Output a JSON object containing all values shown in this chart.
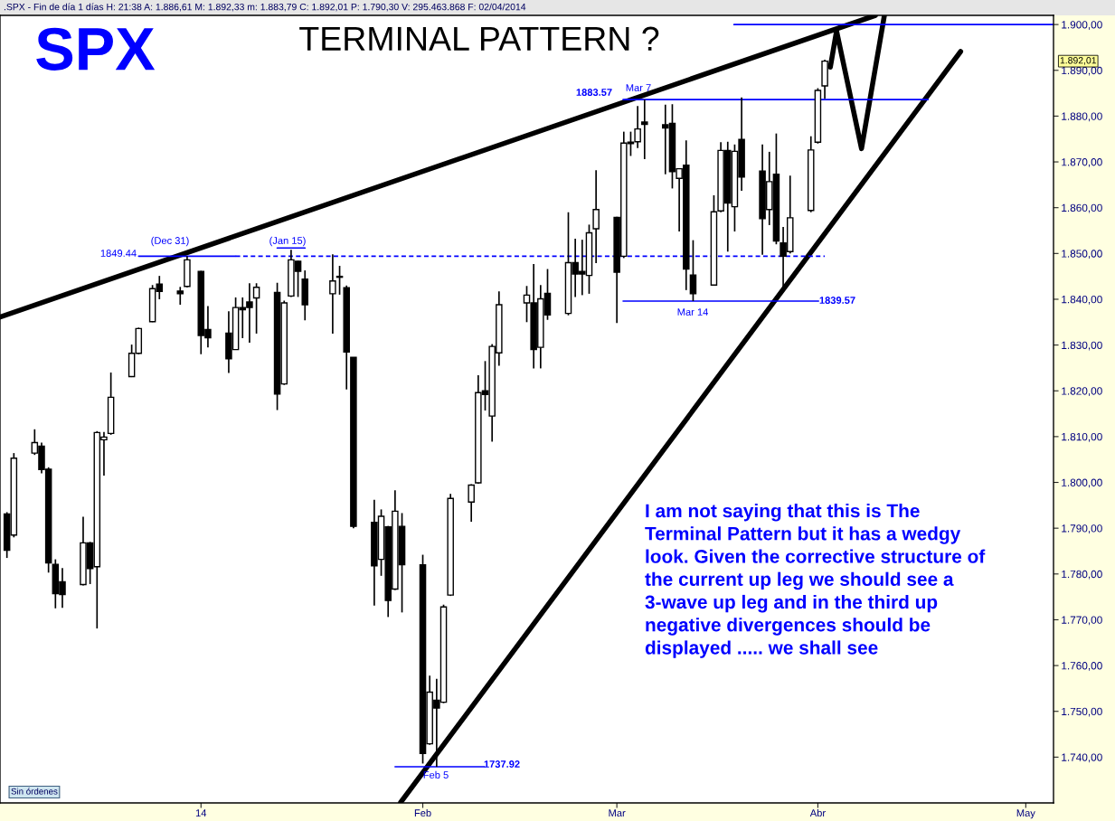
{
  "chart_data": {
    "type": "candlestick",
    "title": "SPX",
    "subtitle": "TERMINAL PATTERN ?",
    "x": [
      "2013-12-05",
      "2013-12-06",
      "2013-12-09",
      "2013-12-10",
      "2013-12-11",
      "2013-12-12",
      "2013-12-13",
      "2013-12-16",
      "2013-12-17",
      "2013-12-18",
      "2013-12-19",
      "2013-12-20",
      "2013-12-23",
      "2013-12-24",
      "2013-12-26",
      "2013-12-27",
      "2013-12-30",
      "2013-12-31",
      "2014-01-02",
      "2014-01-03",
      "2014-01-06",
      "2014-01-07",
      "2014-01-08",
      "2014-01-09",
      "2014-01-10",
      "2014-01-13",
      "2014-01-14",
      "2014-01-15",
      "2014-01-16",
      "2014-01-17",
      "2014-01-21",
      "2014-01-22",
      "2014-01-23",
      "2014-01-24",
      "2014-01-27",
      "2014-01-28",
      "2014-01-29",
      "2014-01-30",
      "2014-01-31",
      "2014-02-03",
      "2014-02-04",
      "2014-02-05",
      "2014-02-06",
      "2014-02-07",
      "2014-02-10",
      "2014-02-11",
      "2014-02-12",
      "2014-02-13",
      "2014-02-14",
      "2014-02-18",
      "2014-02-19",
      "2014-02-20",
      "2014-02-21",
      "2014-02-24",
      "2014-02-25",
      "2014-02-26",
      "2014-02-27",
      "2014-02-28",
      "2014-03-03",
      "2014-03-04",
      "2014-03-05",
      "2014-03-06",
      "2014-03-07",
      "2014-03-10",
      "2014-03-11",
      "2014-03-12",
      "2014-03-13",
      "2014-03-14",
      "2014-03-17",
      "2014-03-18",
      "2014-03-19",
      "2014-03-20",
      "2014-03-21",
      "2014-03-24",
      "2014-03-25",
      "2014-03-26",
      "2014-03-27",
      "2014-03-28",
      "2014-03-31",
      "2014-04-01",
      "2014-04-02"
    ],
    "ohlc": [
      [
        1793.1,
        1793.5,
        1783.5,
        1785.2
      ],
      [
        1788.5,
        1806.4,
        1788.0,
        1805.3
      ],
      [
        1806.4,
        1811.6,
        1806.0,
        1808.7
      ],
      [
        1807.9,
        1808.7,
        1802.0,
        1802.8
      ],
      [
        1802.9,
        1803.3,
        1780.3,
        1782.4
      ],
      [
        1782.1,
        1783.2,
        1772.5,
        1775.7
      ],
      [
        1778.3,
        1781.3,
        1772.6,
        1775.5
      ],
      [
        1777.7,
        1792.5,
        1777.5,
        1786.8
      ],
      [
        1786.8,
        1787.0,
        1777.8,
        1781.2
      ],
      [
        1781.6,
        1811.2,
        1768.1,
        1810.9
      ],
      [
        1809.3,
        1811.0,
        1801.5,
        1809.9
      ],
      [
        1810.7,
        1824.0,
        1810.4,
        1818.6
      ],
      [
        1823.1,
        1830.1,
        1823.0,
        1828.2
      ],
      [
        1828.2,
        1833.8,
        1828.0,
        1833.6
      ],
      [
        1835.1,
        1843.1,
        1835.0,
        1842.3
      ],
      [
        1843.3,
        1845.1,
        1840.0,
        1841.7
      ],
      [
        1841.8,
        1842.7,
        1838.8,
        1841.2
      ],
      [
        1842.8,
        1849.4,
        1842.6,
        1848.6
      ],
      [
        1846.1,
        1846.2,
        1828.0,
        1832.1
      ],
      [
        1833.4,
        1838.5,
        1829.5,
        1831.6
      ],
      [
        1832.6,
        1837.4,
        1823.9,
        1827.0
      ],
      [
        1829.0,
        1840.4,
        1829.0,
        1838.2
      ],
      [
        1838.2,
        1840.4,
        1831.5,
        1837.7
      ],
      [
        1839.4,
        1843.5,
        1830.5,
        1838.2
      ],
      [
        1840.3,
        1843.5,
        1832.5,
        1842.6
      ],
      [
        1841.5,
        1843.6,
        1815.8,
        1819.3
      ],
      [
        1821.5,
        1839.7,
        1821.3,
        1839.2
      ],
      [
        1840.7,
        1850.8,
        1840.5,
        1848.6
      ],
      [
        1848.3,
        1848.4,
        1840.5,
        1846.1
      ],
      [
        1844.4,
        1846.3,
        1835.4,
        1838.8
      ],
      [
        1841.2,
        1849.8,
        1832.5,
        1844.0
      ],
      [
        1845.0,
        1847.3,
        1841.0,
        1844.8
      ],
      [
        1842.5,
        1843.0,
        1820.3,
        1828.5
      ],
      [
        1827.3,
        1827.3,
        1790.0,
        1790.4
      ],
      [
        1791.3,
        1796.2,
        1773.1,
        1781.8
      ],
      [
        1783.2,
        1794.1,
        1779.6,
        1792.6
      ],
      [
        1790.3,
        1790.5,
        1770.6,
        1774.2
      ],
      [
        1776.7,
        1798.3,
        1776.5,
        1793.7
      ],
      [
        1790.4,
        1793.3,
        1771.6,
        1782.0
      ],
      [
        1782.0,
        1784.2,
        1738.6,
        1740.8
      ],
      [
        1742.9,
        1757.8,
        1742.7,
        1754.2
      ],
      [
        1752.4,
        1757.1,
        1737.9,
        1750.7
      ],
      [
        1752.0,
        1773.3,
        1751.8,
        1772.8
      ],
      [
        1775.4,
        1797.5,
        1775.2,
        1796.5
      ],
      [
        1795.7,
        1799.6,
        1791.4,
        1799.4
      ],
      [
        1799.9,
        1823.4,
        1799.7,
        1819.6
      ],
      [
        1820.0,
        1826.5,
        1815.7,
        1819.2
      ],
      [
        1814.5,
        1830.2,
        1808.9,
        1829.7
      ],
      [
        1828.3,
        1841.7,
        1825.5,
        1838.8
      ],
      [
        1839.2,
        1842.9,
        1835.0,
        1840.9
      ],
      [
        1839.2,
        1847.7,
        1824.9,
        1829.0
      ],
      [
        1829.5,
        1843.1,
        1824.9,
        1840.1
      ],
      [
        1841.3,
        1846.6,
        1835.5,
        1836.6
      ],
      [
        1836.9,
        1859.0,
        1836.5,
        1848.0
      ],
      [
        1848.0,
        1853.2,
        1840.5,
        1845.5
      ],
      [
        1846.1,
        1853.0,
        1840.9,
        1845.5
      ],
      [
        1845.2,
        1856.3,
        1841.2,
        1854.5
      ],
      [
        1855.4,
        1868.2,
        1847.9,
        1859.6
      ],
      [
        1857.9,
        1858.0,
        1834.8,
        1845.9
      ],
      [
        1849.4,
        1876.6,
        1849.0,
        1874.1
      ],
      [
        1874.3,
        1876.6,
        1871.3,
        1874.0
      ],
      [
        1874.4,
        1882.2,
        1873.0,
        1877.2
      ],
      [
        1878.7,
        1883.6,
        1870.6,
        1878.2
      ],
      [
        1878.1,
        1882.5,
        1867.3,
        1877.4
      ],
      [
        1878.4,
        1882.6,
        1864.2,
        1867.9
      ],
      [
        1866.4,
        1868.6,
        1854.8,
        1868.5
      ],
      [
        1869.3,
        1874.7,
        1842.0,
        1846.6
      ],
      [
        1845.3,
        1852.9,
        1839.6,
        1841.2
      ],
      [
        1843.1,
        1862.7,
        1843.0,
        1859.1
      ],
      [
        1859.3,
        1874.3,
        1859.0,
        1872.5
      ],
      [
        1872.5,
        1874.4,
        1850.4,
        1861.0
      ],
      [
        1860.2,
        1873.8,
        1854.8,
        1872.3
      ],
      [
        1874.9,
        1884.1,
        1863.7,
        1866.7
      ],
      [
        1868.0,
        1873.8,
        1849.7,
        1857.6
      ],
      [
        1859.6,
        1872.2,
        1856.2,
        1865.7
      ],
      [
        1867.3,
        1876.2,
        1852.0,
        1852.7
      ],
      [
        1852.3,
        1855.8,
        1842.6,
        1849.4
      ],
      [
        1850.4,
        1867.0,
        1850.0,
        1857.8
      ],
      [
        1859.4,
        1875.6,
        1859.0,
        1872.6
      ],
      [
        1874.3,
        1886.1,
        1874.0,
        1885.6
      ],
      [
        1886.6,
        1892.3,
        1883.8,
        1892.0
      ]
    ],
    "series": [
      {
        "type": "line",
        "color": "#000000",
        "x": [
          "2013-12-04",
          "2014-04-09T07:12"
        ],
        "values": [
          1836.1,
          1902
        ]
      },
      {
        "type": "line",
        "color": "#000000",
        "x": [
          "2014-01-30T19:12",
          "2014-04-21T14:24"
        ],
        "values": [
          1730.1,
          1894.1
        ]
      },
      {
        "type": "line",
        "color": "#000000",
        "x": [
          "2014-04-02T19:12",
          "2014-04-03T16:48",
          "2014-04-07T07:12",
          "2014-04-10T14:24"
        ],
        "values": [
          1890.7,
          1898.6,
          1872.9,
          1902
        ]
      },
      {
        "type": "line",
        "color": "#0000ff",
        "x": [
          "2013-12-24",
          "2014-01-07"
        ],
        "values": [
          1849.4,
          1849.4
        ]
      },
      {
        "type": "line",
        "color": "#0000ff",
        "line_style": "dashed",
        "x": [
          "2014-01-07",
          "2014-04-02"
        ],
        "values": [
          1849.4,
          1849.4
        ]
      },
      {
        "type": "line",
        "color": "#0000ff",
        "x": [
          "2014-01-13",
          "2014-01-17"
        ],
        "values": [
          1851.2,
          1851.2
        ]
      },
      {
        "type": "line",
        "color": "#0000ff",
        "x": [
          "2014-03-03T21:36",
          "2014-04-16T21:36"
        ],
        "values": [
          1883.6,
          1883.6
        ]
      },
      {
        "type": "line",
        "color": "#0000ff",
        "x": [
          "2014-03-19T21:36",
          "2014-05-05"
        ],
        "values": [
          1900,
          1900
        ]
      },
      {
        "type": "line",
        "color": "#0000ff",
        "x": [
          "2014-03-03T21:36",
          "2014-04-01T02:24"
        ],
        "values": [
          1839.6,
          1839.6
        ]
      },
      {
        "type": "line",
        "color": "#0000ff",
        "x": [
          "2014-01-30",
          "2014-02-11T21:36"
        ],
        "values": [
          1737.9,
          1737.9
        ]
      }
    ],
    "xlim": [
      "2013-12-04",
      "2014-05-05"
    ],
    "xticks": [
      {
        "value": "2014-01-02",
        "label": "14"
      },
      {
        "value": "2014-02-03",
        "label": "Feb"
      },
      {
        "value": "2014-03-03",
        "label": "Mar"
      },
      {
        "value": "2014-04-01",
        "label": "Abr"
      },
      {
        "value": "2014-05-01",
        "label": "May"
      }
    ],
    "ylim": [
      1730,
      1902
    ],
    "yticks": [
      {
        "value": 1740,
        "label": "1.740,00"
      },
      {
        "value": 1750,
        "label": "1.750,00"
      },
      {
        "value": 1760,
        "label": "1.760,00"
      },
      {
        "value": 1770,
        "label": "1.770,00"
      },
      {
        "value": 1780,
        "label": "1.780,00"
      },
      {
        "value": 1790,
        "label": "1.790,00"
      },
      {
        "value": 1800,
        "label": "1.800,00"
      },
      {
        "value": 1810,
        "label": "1.810,00"
      },
      {
        "value": 1820,
        "label": "1.820,00"
      },
      {
        "value": 1830,
        "label": "1.830,00"
      },
      {
        "value": 1840,
        "label": "1.840,00"
      },
      {
        "value": 1850,
        "label": "1.850,00"
      },
      {
        "value": 1860,
        "label": "1.860,00"
      },
      {
        "value": 1870,
        "label": "1.870,00"
      },
      {
        "value": 1880,
        "label": "1.880,00"
      },
      {
        "value": 1890,
        "label": "1.890,00"
      },
      {
        "value": 1900,
        "label": "1.900,00"
      }
    ],
    "grid": false,
    "annotations": [
      ".SPX - Fin de día 1 días H: 21:38 A: 1.886,61 M: 1.892,33 m: 1.883,79 C: 1.892,01 P: 1.790,30 V: 295.463.868 F: 02/04/2014",
      "Sin órdenes",
      "I am not saying that this is The\nTerminal Pattern but it has a wedgy\nlook. Given the corrective structure of\nthe current up leg we should see a\n3-wave up leg and in the third up\nnegative divergences should be\ndisplayed ..... we shall see",
      "1.892,01",
      "1849.44",
      "(Dec 31)",
      "(Jan 15)",
      "1883.57",
      "Mar 7",
      "Mar 14",
      "1839.57",
      "Feb 5",
      "1737.92"
    ]
  }
}
